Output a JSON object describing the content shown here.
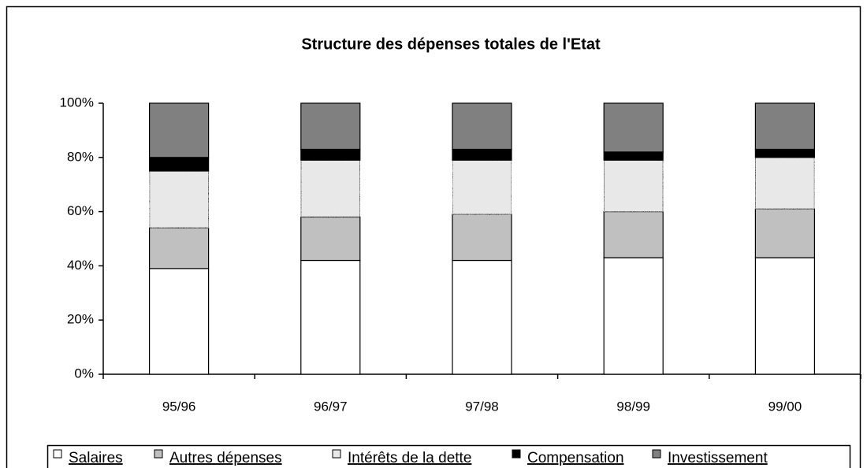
{
  "chart_data": {
    "type": "stacked_bar_100",
    "title": "Structure des dépenses totales de l'Etat",
    "categories": [
      "95/96",
      "96/97",
      "97/98",
      "98/99",
      "99/00"
    ],
    "series": [
      {
        "name": "Salaires",
        "color": "#ffffff",
        "values": [
          39,
          42,
          42,
          43,
          43
        ]
      },
      {
        "name": "Autres dépenses",
        "color": "#c0c0c0",
        "values": [
          15,
          16,
          17,
          17,
          18
        ]
      },
      {
        "name": "Intérêts de la dette",
        "color": "#e8e8e8",
        "values": [
          21,
          21,
          20,
          19,
          19
        ]
      },
      {
        "name": "Compensation",
        "color": "#000000",
        "values": [
          5,
          4,
          4,
          3,
          3
        ]
      },
      {
        "name": "Investissement",
        "color": "#808080",
        "values": [
          20,
          17,
          17,
          18,
          17
        ]
      }
    ],
    "ylim": [
      0,
      100
    ],
    "yticks": [
      {
        "value": 0,
        "label": "0%"
      },
      {
        "value": 20,
        "label": "20%"
      },
      {
        "value": 40,
        "label": "40%"
      },
      {
        "value": 60,
        "label": "60%"
      },
      {
        "value": 80,
        "label": "80%"
      },
      {
        "value": 100,
        "label": "100%"
      }
    ],
    "legend": "bottom"
  }
}
